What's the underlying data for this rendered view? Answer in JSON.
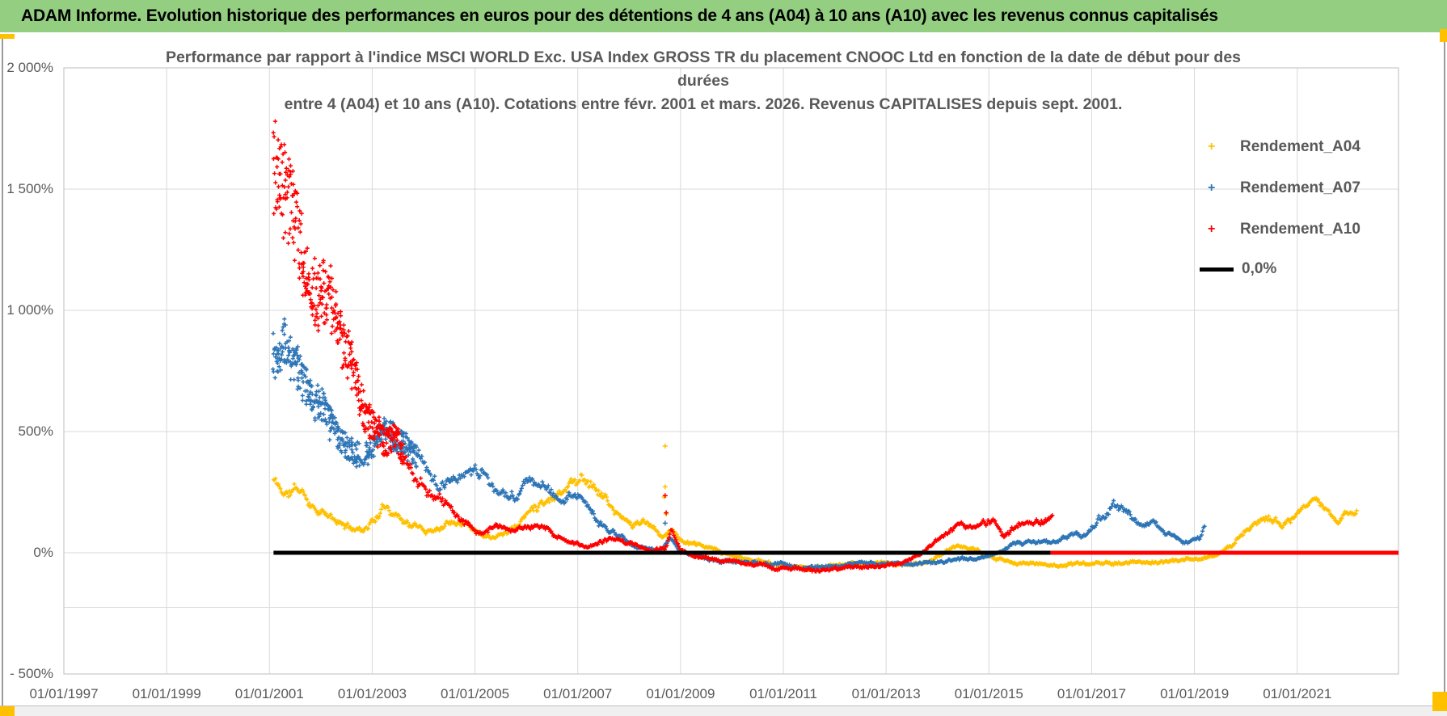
{
  "window": {
    "title": "ADAM Informe. Evolution historique des performances en euros pour des détentions de 4 ans (A04) à 10 ans (A10) avec les revenus connus capitalisés"
  },
  "chart": {
    "title_lines": [
      "Performance par rapport à l'indice MSCI WORLD Exc. USA Index GROSS TR  du placement CNOOC Ltd en fonction de la date de début pour des",
      "durées",
      "entre 4 (A04) et 10 ans (A10). Cotations entre févr. 2001 et mars. 2026. Revenus CAPITALISES depuis sept. 2001."
    ],
    "legend": [
      {
        "label": "Rendement_A04",
        "color": "#FFC000",
        "marker": "plus"
      },
      {
        "label": "Rendement_A07",
        "color": "#2E75B6",
        "marker": "plus"
      },
      {
        "label": "Rendement_A10",
        "color": "#FF0000",
        "marker": "plus"
      },
      {
        "label": "0,0%",
        "color": "#000000",
        "marker": "line"
      }
    ],
    "colors": {
      "titlebar_green": "#94CE81",
      "accent_yellow": "#FFC000",
      "grid": "#D9D9D9",
      "plot_border": "#C9C9C9",
      "axis_text": "#595959"
    },
    "axes": {
      "x": {
        "min_year": 1997,
        "max_year": 2022.97,
        "ticks": [
          {
            "label": "01/01/1997",
            "year": 1997
          },
          {
            "label": "01/01/1999",
            "year": 1999
          },
          {
            "label": "01/01/2001",
            "year": 2001
          },
          {
            "label": "01/01/2003",
            "year": 2003
          },
          {
            "label": "01/01/2005",
            "year": 2005
          },
          {
            "label": "01/01/2007",
            "year": 2007
          },
          {
            "label": "01/01/2009",
            "year": 2009
          },
          {
            "label": "01/01/2011",
            "year": 2011
          },
          {
            "label": "01/01/2013",
            "year": 2013
          },
          {
            "label": "01/01/2015",
            "year": 2015
          },
          {
            "label": "01/01/2017",
            "year": 2017
          },
          {
            "label": "01/01/2019",
            "year": 2019
          },
          {
            "label": "01/01/2021",
            "year": 2021
          }
        ]
      },
      "y": {
        "min": -500,
        "max": 2000,
        "extra_gridline_value": -225,
        "ticks": [
          {
            "label": "2 000%",
            "value": 2000
          },
          {
            "label": "1 500%",
            "value": 1500
          },
          {
            "label": "1 000%",
            "value": 1000
          },
          {
            "label": "500%",
            "value": 500
          },
          {
            "label": "0%",
            "value": 0
          },
          {
            "label": "- 500%",
            "value": -500
          }
        ]
      }
    }
  },
  "chart_data": {
    "type": "scatter",
    "x_unit": "decimal_year",
    "y_unit": "percent",
    "marker": "plus",
    "series": [
      {
        "name": "Rendement_A04",
        "color": "#FFC000",
        "seed": 11,
        "points": [
          [
            2001.08,
            300
          ],
          [
            2001.3,
            240
          ],
          [
            2001.55,
            260
          ],
          [
            2001.8,
            210
          ],
          [
            2002.05,
            170
          ],
          [
            2002.3,
            120
          ],
          [
            2002.55,
            100
          ],
          [
            2002.8,
            95
          ],
          [
            2003.05,
            145
          ],
          [
            2003.3,
            195
          ],
          [
            2003.55,
            150
          ],
          [
            2003.8,
            115
          ],
          [
            2004.05,
            90
          ],
          [
            2004.3,
            110
          ],
          [
            2004.55,
            145
          ],
          [
            2004.8,
            130
          ],
          [
            2005.05,
            95
          ],
          [
            2005.3,
            75
          ],
          [
            2005.55,
            90
          ],
          [
            2005.8,
            115
          ],
          [
            2006.05,
            170
          ],
          [
            2006.3,
            220
          ],
          [
            2006.55,
            250
          ],
          [
            2006.8,
            290
          ],
          [
            2007.05,
            320
          ],
          [
            2007.3,
            300
          ],
          [
            2007.55,
            230
          ],
          [
            2007.8,
            150
          ],
          [
            2008.05,
            110
          ],
          [
            2008.25,
            125
          ],
          [
            2008.45,
            95
          ],
          [
            2008.65,
            60
          ],
          [
            2008.8,
            100
          ],
          [
            2009.0,
            55
          ],
          [
            2009.3,
            30
          ],
          [
            2009.6,
            10
          ],
          [
            2009.9,
            -10
          ],
          [
            2010.3,
            -30
          ],
          [
            2010.7,
            -40
          ],
          [
            2011.1,
            -55
          ],
          [
            2011.5,
            -60
          ],
          [
            2011.9,
            -55
          ],
          [
            2012.3,
            -50
          ],
          [
            2012.7,
            -48
          ],
          [
            2013.1,
            -45
          ],
          [
            2013.5,
            -50
          ],
          [
            2013.9,
            -35
          ],
          [
            2014.2,
            10
          ],
          [
            2014.5,
            30
          ],
          [
            2014.8,
            5
          ],
          [
            2015.1,
            -25
          ],
          [
            2015.5,
            -38
          ],
          [
            2015.9,
            -45
          ],
          [
            2016.3,
            -50
          ],
          [
            2016.7,
            -45
          ],
          [
            2017.1,
            -42
          ],
          [
            2017.5,
            -45
          ],
          [
            2017.9,
            -40
          ],
          [
            2018.3,
            -38
          ],
          [
            2018.7,
            -32
          ],
          [
            2019.1,
            -28
          ],
          [
            2019.4,
            -15
          ],
          [
            2019.6,
            10
          ],
          [
            2019.8,
            50
          ],
          [
            2020.0,
            95
          ],
          [
            2020.2,
            135
          ],
          [
            2020.45,
            145
          ],
          [
            2020.7,
            125
          ],
          [
            2020.95,
            150
          ],
          [
            2021.2,
            185
          ],
          [
            2021.4,
            205
          ],
          [
            2021.6,
            165
          ],
          [
            2021.8,
            140
          ],
          [
            2022.0,
            175
          ],
          [
            2022.17,
            155
          ]
        ],
        "outliers": [
          [
            2008.7,
            440
          ],
          [
            2008.7,
            272
          ],
          [
            2008.72,
            160
          ],
          [
            2008.68,
            230
          ]
        ]
      },
      {
        "name": "Rendement_A07",
        "color": "#2E75B6",
        "seed": 22,
        "points": [
          [
            2001.08,
            820
          ],
          [
            2001.3,
            880
          ],
          [
            2001.55,
            760
          ],
          [
            2001.8,
            640
          ],
          [
            2002.05,
            600
          ],
          [
            2002.3,
            480
          ],
          [
            2002.55,
            430
          ],
          [
            2002.8,
            390
          ],
          [
            2003.0,
            430
          ],
          [
            2003.25,
            500
          ],
          [
            2003.5,
            460
          ],
          [
            2003.75,
            420
          ],
          [
            2004.0,
            380
          ],
          [
            2004.25,
            300
          ],
          [
            2004.5,
            270
          ],
          [
            2004.75,
            290
          ],
          [
            2005.0,
            320
          ],
          [
            2005.25,
            300
          ],
          [
            2005.5,
            270
          ],
          [
            2005.75,
            240
          ],
          [
            2006.0,
            280
          ],
          [
            2006.25,
            300
          ],
          [
            2006.5,
            250
          ],
          [
            2006.75,
            220
          ],
          [
            2007.0,
            230
          ],
          [
            2007.25,
            160
          ],
          [
            2007.5,
            120
          ],
          [
            2007.75,
            80
          ],
          [
            2008.0,
            40
          ],
          [
            2008.3,
            15
          ],
          [
            2008.6,
            5
          ],
          [
            2008.8,
            60
          ],
          [
            2009.0,
            0
          ],
          [
            2009.4,
            -20
          ],
          [
            2009.8,
            -35
          ],
          [
            2010.2,
            -40
          ],
          [
            2010.6,
            -50
          ],
          [
            2011.0,
            -45
          ],
          [
            2011.4,
            -60
          ],
          [
            2011.8,
            -55
          ],
          [
            2012.2,
            -50
          ],
          [
            2012.6,
            -45
          ],
          [
            2013.0,
            -45
          ],
          [
            2013.4,
            -50
          ],
          [
            2013.8,
            -40
          ],
          [
            2014.2,
            -30
          ],
          [
            2014.6,
            -25
          ],
          [
            2015.0,
            -15
          ],
          [
            2015.3,
            15
          ],
          [
            2015.6,
            45
          ],
          [
            2015.9,
            55
          ],
          [
            2016.2,
            40
          ],
          [
            2016.5,
            60
          ],
          [
            2016.8,
            75
          ],
          [
            2017.1,
            130
          ],
          [
            2017.4,
            200
          ],
          [
            2017.55,
            185
          ],
          [
            2017.8,
            130
          ],
          [
            2018.0,
            95
          ],
          [
            2018.2,
            115
          ],
          [
            2018.45,
            75
          ],
          [
            2018.7,
            50
          ],
          [
            2018.9,
            40
          ],
          [
            2019.1,
            55
          ],
          [
            2019.2,
            115
          ]
        ],
        "outliers": [
          [
            2008.7,
            122
          ]
        ]
      },
      {
        "name": "Rendement_A10",
        "color": "#FF0000",
        "seed": 33,
        "points": [
          [
            2001.08,
            1600
          ],
          [
            2001.25,
            1500
          ],
          [
            2001.45,
            1420
          ],
          [
            2001.7,
            1150
          ],
          [
            2001.95,
            1050
          ],
          [
            2002.15,
            1100
          ],
          [
            2002.35,
            900
          ],
          [
            2002.6,
            780
          ],
          [
            2002.85,
            560
          ],
          [
            2003.05,
            520
          ],
          [
            2003.25,
            450
          ],
          [
            2003.45,
            480
          ],
          [
            2003.65,
            380
          ],
          [
            2003.9,
            300
          ],
          [
            2004.2,
            250
          ],
          [
            2004.5,
            180
          ],
          [
            2004.8,
            120
          ],
          [
            2005.1,
            90
          ],
          [
            2005.4,
            110
          ],
          [
            2005.7,
            80
          ],
          [
            2006.0,
            95
          ],
          [
            2006.3,
            105
          ],
          [
            2006.6,
            70
          ],
          [
            2006.9,
            50
          ],
          [
            2007.2,
            20
          ],
          [
            2007.5,
            45
          ],
          [
            2007.8,
            60
          ],
          [
            2008.1,
            35
          ],
          [
            2008.4,
            15
          ],
          [
            2008.7,
            20
          ],
          [
            2008.82,
            90
          ],
          [
            2009.0,
            10
          ],
          [
            2009.3,
            -15
          ],
          [
            2009.6,
            -25
          ],
          [
            2010.0,
            -35
          ],
          [
            2010.4,
            -50
          ],
          [
            2010.8,
            -60
          ],
          [
            2011.2,
            -65
          ],
          [
            2011.6,
            -75
          ],
          [
            2012.0,
            -70
          ],
          [
            2012.4,
            -65
          ],
          [
            2012.8,
            -55
          ],
          [
            2013.2,
            -40
          ],
          [
            2013.6,
            -10
          ],
          [
            2013.9,
            30
          ],
          [
            2014.2,
            75
          ],
          [
            2014.45,
            110
          ],
          [
            2014.7,
            90
          ],
          [
            2014.9,
            115
          ],
          [
            2015.1,
            120
          ],
          [
            2015.3,
            60
          ],
          [
            2015.5,
            100
          ],
          [
            2015.75,
            140
          ],
          [
            2016.0,
            130
          ],
          [
            2016.25,
            160
          ]
        ],
        "outliers": [
          [
            2008.7,
            236
          ],
          [
            2008.72,
            165
          ]
        ]
      }
    ],
    "zero_line": {
      "name": "0,0%",
      "color": "#000000",
      "value": 0,
      "from": 2001.08,
      "to": 2016.2
    },
    "red_zero_tail": {
      "color": "#FF0000",
      "value": 0,
      "from": 2016.2,
      "to": 2022.97
    }
  }
}
